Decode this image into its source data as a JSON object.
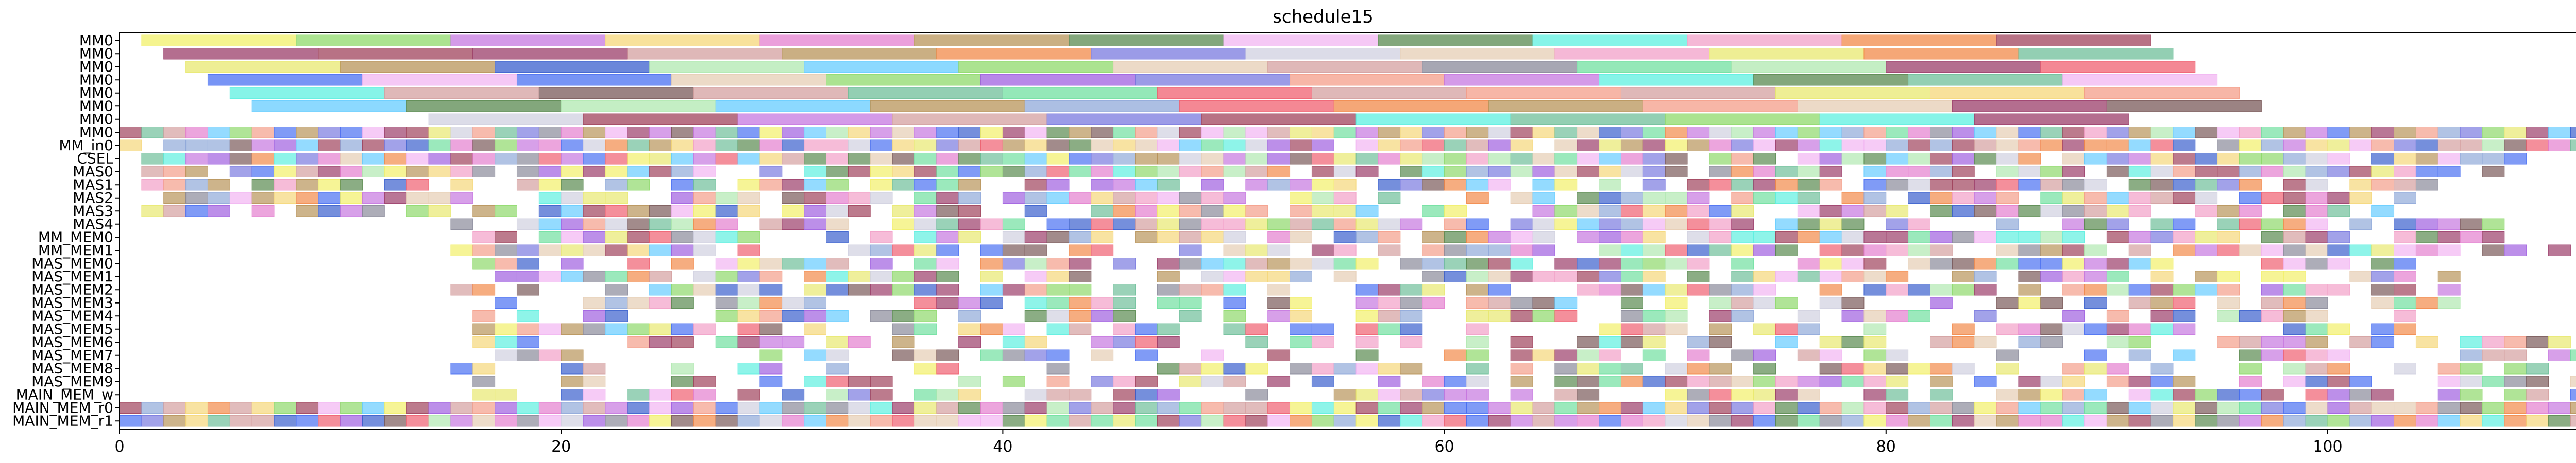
{
  "chart_data": {
    "type": "gantt",
    "title": "schedule15",
    "xlabel": "",
    "ylabel": "",
    "xlim": [
      0,
      114
    ],
    "grid": false,
    "x_ticks": [
      0,
      20,
      40,
      60,
      80,
      100
    ],
    "rows": [
      "MM0",
      "MM0",
      "MM0",
      "MM0",
      "MM0",
      "MM0",
      "MM0",
      "MM0",
      "MM_in0",
      "CSEL",
      "MAS0",
      "MAS1",
      "MAS2",
      "MAS3",
      "MAS4",
      "MM_MEM0",
      "MM_MEM1",
      "MAS_MEM0",
      "MAS_MEM1",
      "MAS_MEM2",
      "MAS_MEM3",
      "MAS_MEM4",
      "MAS_MEM5",
      "MAS_MEM6",
      "MAS_MEM7",
      "MAS_MEM8",
      "MAS_MEM9",
      "MAIN_MEM_w",
      "MAIN_MEM_r0",
      "MAIN_MEM_r1"
    ],
    "mm_rows": [
      {
        "row": 0,
        "start": 1,
        "dur": 7,
        "count": 13
      },
      {
        "row": 1,
        "start": 2,
        "dur": 7,
        "count": 13
      },
      {
        "row": 2,
        "start": 3,
        "dur": 7,
        "count": 13
      },
      {
        "row": 3,
        "start": 4,
        "dur": 7,
        "count": 13
      },
      {
        "row": 4,
        "start": 5,
        "dur": 7,
        "count": 13
      },
      {
        "row": 5,
        "start": 6,
        "dur": 7,
        "count": 13
      },
      {
        "row": 6,
        "start": 14,
        "dur": 7,
        "count": 11
      }
    ],
    "cell_rows": [
      {
        "row": 7,
        "start": 0,
        "end": 114,
        "density": 1.0
      },
      {
        "row": 8,
        "start": 0,
        "end": 113,
        "density": 0.97
      },
      {
        "row": 9,
        "start": 1,
        "end": 109,
        "density": 0.95
      },
      {
        "row": 10,
        "start": 1,
        "end": 108,
        "density": 0.85
      },
      {
        "row": 11,
        "start": 1,
        "end": 105,
        "density": 0.8
      },
      {
        "row": 12,
        "start": 1,
        "end": 104,
        "density": 0.8
      },
      {
        "row": 13,
        "start": 1,
        "end": 103,
        "density": 0.8
      },
      {
        "row": 14,
        "start": 15,
        "end": 108,
        "density": 0.82
      },
      {
        "row": 15,
        "start": 15,
        "end": 108,
        "density": 0.78
      },
      {
        "row": 16,
        "start": 15,
        "end": 111,
        "density": 0.75
      },
      {
        "row": 17,
        "start": 16,
        "end": 107,
        "density": 0.72
      },
      {
        "row": 18,
        "start": 15,
        "end": 107,
        "density": 0.7
      },
      {
        "row": 19,
        "start": 15,
        "end": 107,
        "density": 0.68
      },
      {
        "row": 20,
        "start": 16,
        "end": 106,
        "density": 0.65
      },
      {
        "row": 21,
        "start": 16,
        "end": 104,
        "density": 0.62
      },
      {
        "row": 22,
        "start": 16,
        "end": 104,
        "density": 0.6
      },
      {
        "row": 23,
        "start": 16,
        "end": 111,
        "density": 0.58
      },
      {
        "row": 24,
        "start": 16,
        "end": 112,
        "density": 0.55
      },
      {
        "row": 25,
        "start": 15,
        "end": 112,
        "density": 0.55
      },
      {
        "row": 26,
        "start": 16,
        "end": 112,
        "density": 0.55
      },
      {
        "row": 27,
        "start": 16,
        "end": 113,
        "density": 0.6
      },
      {
        "row": 28,
        "start": 0,
        "end": 114,
        "density": 1.0
      },
      {
        "row": 29,
        "start": 0,
        "end": 114,
        "density": 1.0
      }
    ],
    "palette": [
      "#e6cdb4",
      "#7a5a5a",
      "#3a5fcd",
      "#e47fcf",
      "#90a9d9",
      "#f2b5f2",
      "#9b3d6a",
      "#8a8a9a",
      "#f49e8a",
      "#b8945a",
      "#a0435c",
      "#f5d77a",
      "#5ef0e0",
      "#8fd96b",
      "#7a7adf",
      "#f2a0c8",
      "#6fbf9a",
      "#c678e0",
      "#f06070",
      "#5a8a50",
      "#d0d0e0",
      "#f2f06a",
      "#4a70f2",
      "#b0e8b0",
      "#a060e0",
      "#f28a4a",
      "#66ccff",
      "#d4a0a0",
      "#70e0a0",
      "#e8e870"
    ]
  }
}
